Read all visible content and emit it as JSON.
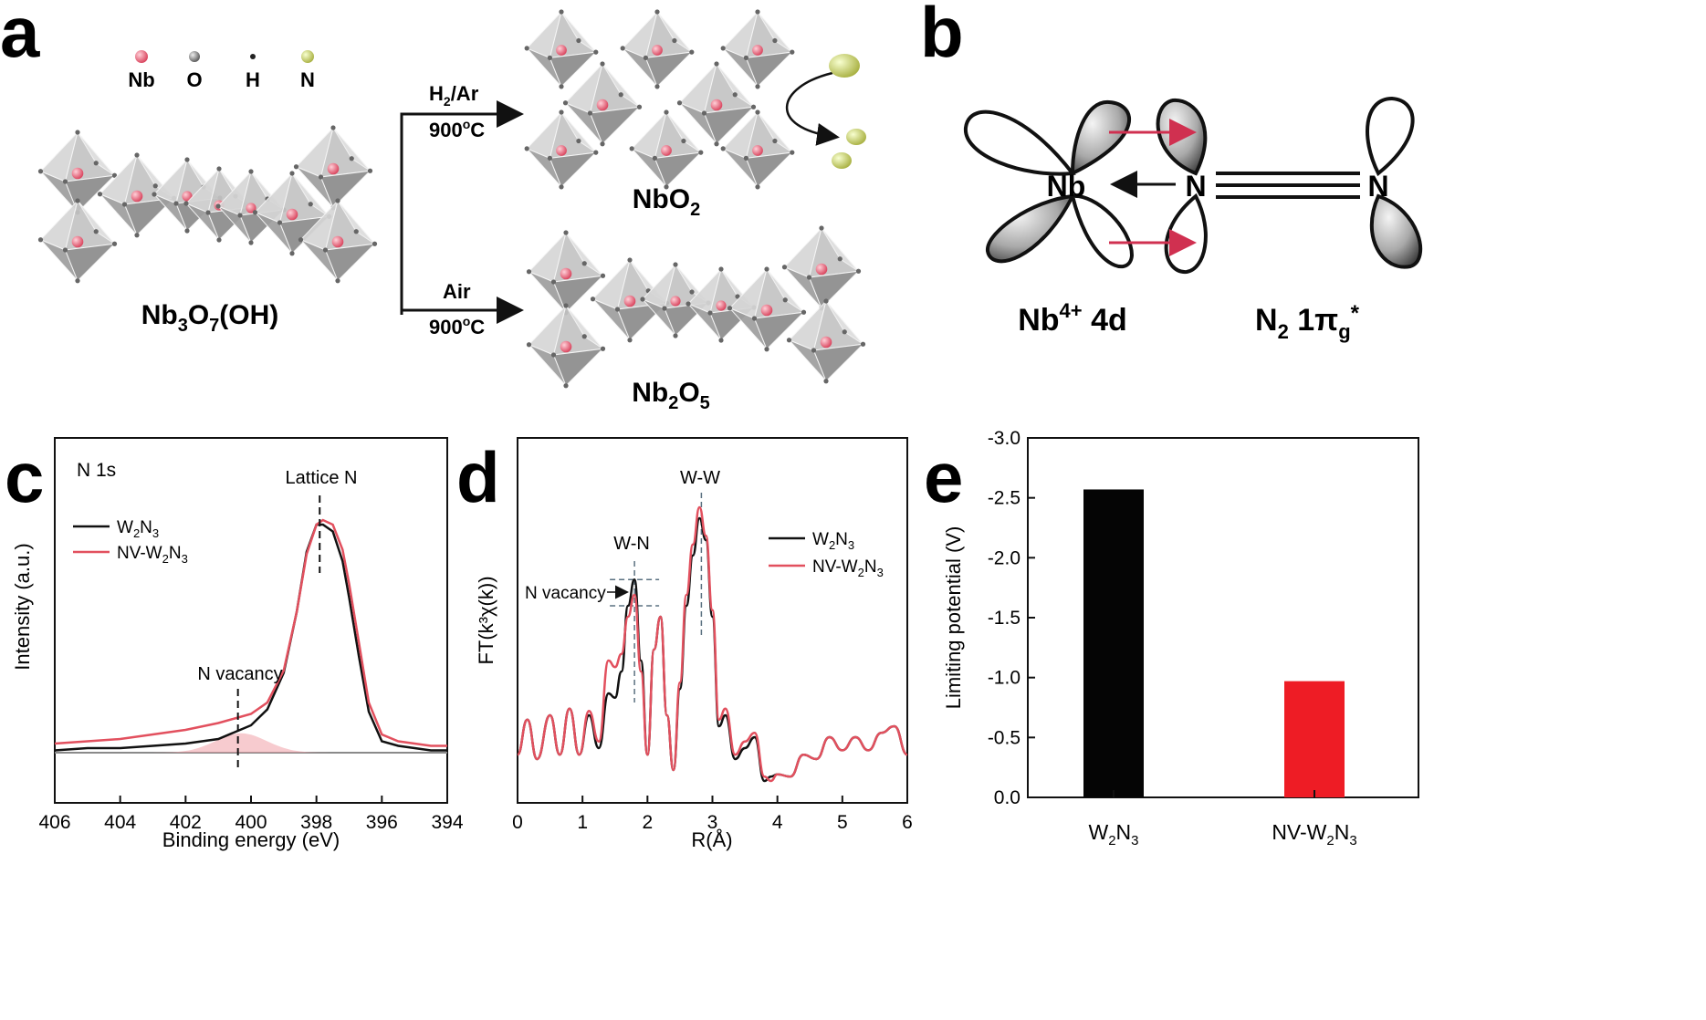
{
  "panel_labels": {
    "a": "a",
    "b": "b",
    "c": "c",
    "d": "d",
    "e": "e"
  },
  "panel_a": {
    "legend": [
      "Nb",
      "O",
      "H",
      "N"
    ],
    "colors": {
      "Nb": "#e0506a",
      "O": "#777777",
      "H": "#222222",
      "N": "#d4dc70",
      "octahedron": "#bdbdbd",
      "arrow": "#111111"
    },
    "reactant": {
      "base": "Nb",
      "sub1": "3",
      "mid": "O",
      "sub2": "7",
      "tail": "(OH)"
    },
    "top_arrow": {
      "gas": "H",
      "gas_sub": "2",
      "gas_tail": "/Ar",
      "temp": "900",
      "temp_sup": "o",
      "temp_unit": "C"
    },
    "bottom_arrow": {
      "gas": "Air",
      "temp": "900",
      "temp_sup": "o",
      "temp_unit": "C"
    },
    "product_top": {
      "base": "NbO",
      "sub": "2"
    },
    "product_bottom": {
      "base": "Nb",
      "sub1": "2",
      "mid": "O",
      "sub2": "5"
    }
  },
  "panel_b": {
    "atom_nb": "Nb",
    "atom_n1": "N",
    "atom_n2": "N",
    "label_left": {
      "base": "Nb",
      "sup": "4+",
      "tail": " 4d"
    },
    "label_right": {
      "base": "N",
      "sub1": "2",
      "mid": " 1π",
      "sub2": "g",
      "sup": "*"
    },
    "colors": {
      "arrow": "#d03050",
      "lobe_fill": "#b8b8b8"
    }
  },
  "chart_data": [
    {
      "panel": "c",
      "type": "line",
      "annotation_title": "N 1s",
      "xlabel": "Binding energy (eV)",
      "ylabel": "Intensity (a.u.)",
      "xlim": [
        406,
        394
      ],
      "x_reversed": true,
      "xticks": [
        "406",
        "404",
        "402",
        "400",
        "398",
        "396",
        "394"
      ],
      "annotations": [
        "Lattice N",
        "N vacancy"
      ],
      "markers": {
        "lattice_n": 397.9,
        "n_vacancy": 400.4
      },
      "series": [
        {
          "name": "W2N3",
          "name_main": "W",
          "name_sub1": "2",
          "name_mid": "N",
          "name_sub2": "3",
          "color": "#111111",
          "x": [
            406,
            405,
            404,
            403,
            402,
            401,
            400.5,
            400,
            399.5,
            399,
            398.6,
            398.3,
            398,
            397.8,
            397.5,
            397.2,
            397,
            396.7,
            396.4,
            396,
            395.5,
            395,
            394.5,
            394
          ],
          "y": [
            0.01,
            0.02,
            0.02,
            0.03,
            0.04,
            0.06,
            0.09,
            0.12,
            0.19,
            0.35,
            0.62,
            0.88,
            1.0,
            1.0,
            0.97,
            0.84,
            0.68,
            0.42,
            0.18,
            0.05,
            0.03,
            0.02,
            0.01,
            0.01
          ]
        },
        {
          "name": "NV-W2N3",
          "name_main": "NV-W",
          "name_sub1": "2",
          "name_mid": "N",
          "name_sub2": "3",
          "color": "#e2505e",
          "x": [
            406,
            405,
            404,
            403,
            402,
            401,
            400.5,
            400,
            399.5,
            399,
            398.6,
            398.3,
            398,
            397.8,
            397.5,
            397.2,
            397,
            396.7,
            396.4,
            396,
            395.5,
            395,
            394.5,
            394
          ],
          "y": [
            0.04,
            0.05,
            0.06,
            0.08,
            0.1,
            0.13,
            0.15,
            0.17,
            0.22,
            0.36,
            0.62,
            0.87,
            1.0,
            1.02,
            1.0,
            0.89,
            0.74,
            0.48,
            0.22,
            0.08,
            0.05,
            0.04,
            0.03,
            0.03
          ]
        }
      ]
    },
    {
      "panel": "d",
      "type": "line",
      "xlabel": "R(Å)",
      "ylabel": "FT(k³χ(k))",
      "xlim": [
        0,
        6
      ],
      "xticks": [
        "0",
        "1",
        "2",
        "3",
        "4",
        "5",
        "6"
      ],
      "annotations": [
        "W-W",
        "W-N",
        "N vacancy"
      ],
      "markers": {
        "w_n": 1.8,
        "w_w": 2.83
      },
      "series": [
        {
          "name": "W2N3",
          "name_main": "W",
          "name_sub1": "2",
          "name_mid": "N",
          "name_sub2": "3",
          "color": "#111111",
          "x": [
            0,
            0.15,
            0.3,
            0.5,
            0.65,
            0.8,
            0.95,
            1.1,
            1.25,
            1.4,
            1.5,
            1.6,
            1.7,
            1.8,
            1.9,
            2.0,
            2.1,
            2.2,
            2.3,
            2.4,
            2.5,
            2.6,
            2.7,
            2.8,
            2.9,
            3.0,
            3.1,
            3.2,
            3.35,
            3.5,
            3.65,
            3.8,
            3.9,
            4.0,
            4.2,
            4.4,
            4.6,
            4.8,
            5.0,
            5.2,
            5.4,
            5.6,
            5.8,
            6.0
          ],
          "y": [
            0.12,
            0.28,
            0.1,
            0.3,
            0.12,
            0.33,
            0.12,
            0.3,
            0.15,
            0.4,
            0.38,
            0.5,
            0.8,
            0.92,
            0.55,
            0.12,
            0.6,
            0.75,
            0.3,
            0.05,
            0.42,
            0.8,
            1.03,
            1.2,
            1.1,
            0.75,
            0.25,
            0.3,
            0.1,
            0.15,
            0.2,
            0.0,
            0.02,
            0.03,
            0.02,
            0.12,
            0.1,
            0.2,
            0.14,
            0.2,
            0.14,
            0.22,
            0.25,
            0.12
          ]
        },
        {
          "name": "NV-W2N3",
          "name_main": "NV-W",
          "name_sub1": "2",
          "name_mid": "N",
          "name_sub2": "3",
          "color": "#e2505e",
          "x": [
            0,
            0.15,
            0.3,
            0.5,
            0.65,
            0.8,
            0.95,
            1.1,
            1.25,
            1.4,
            1.5,
            1.6,
            1.7,
            1.8,
            1.9,
            2.0,
            2.1,
            2.2,
            2.3,
            2.4,
            2.5,
            2.6,
            2.7,
            2.8,
            2.9,
            3.0,
            3.1,
            3.2,
            3.35,
            3.5,
            3.65,
            3.8,
            3.9,
            4.0,
            4.2,
            4.4,
            4.6,
            4.8,
            5.0,
            5.2,
            5.4,
            5.6,
            5.8,
            6.0
          ],
          "y": [
            0.12,
            0.28,
            0.1,
            0.3,
            0.12,
            0.33,
            0.12,
            0.32,
            0.18,
            0.55,
            0.52,
            0.58,
            0.75,
            0.85,
            0.5,
            0.12,
            0.6,
            0.75,
            0.3,
            0.05,
            0.45,
            0.85,
            1.08,
            1.25,
            1.12,
            0.78,
            0.28,
            0.33,
            0.12,
            0.18,
            0.22,
            0.02,
            0.0,
            0.03,
            0.02,
            0.12,
            0.1,
            0.2,
            0.14,
            0.2,
            0.14,
            0.22,
            0.25,
            0.12
          ]
        }
      ]
    },
    {
      "panel": "e",
      "type": "bar",
      "ylabel": "Limiting potential (V)",
      "ylim": [
        0,
        -3.0
      ],
      "yticks": [
        "0.0",
        "-0.5",
        "-1.0",
        "-1.5",
        "-2.0",
        "-2.5",
        "-3.0"
      ],
      "categories": [
        "W2N3",
        "NV-W2N3"
      ],
      "category_labels": [
        {
          "main": "W",
          "sub1": "2",
          "mid": "N",
          "sub2": "3"
        },
        {
          "main": "NV-W",
          "sub1": "2",
          "mid": "N",
          "sub2": "3"
        }
      ],
      "values": [
        -2.57,
        -0.97
      ],
      "colors": [
        "#050505",
        "#ee1c25"
      ]
    }
  ]
}
